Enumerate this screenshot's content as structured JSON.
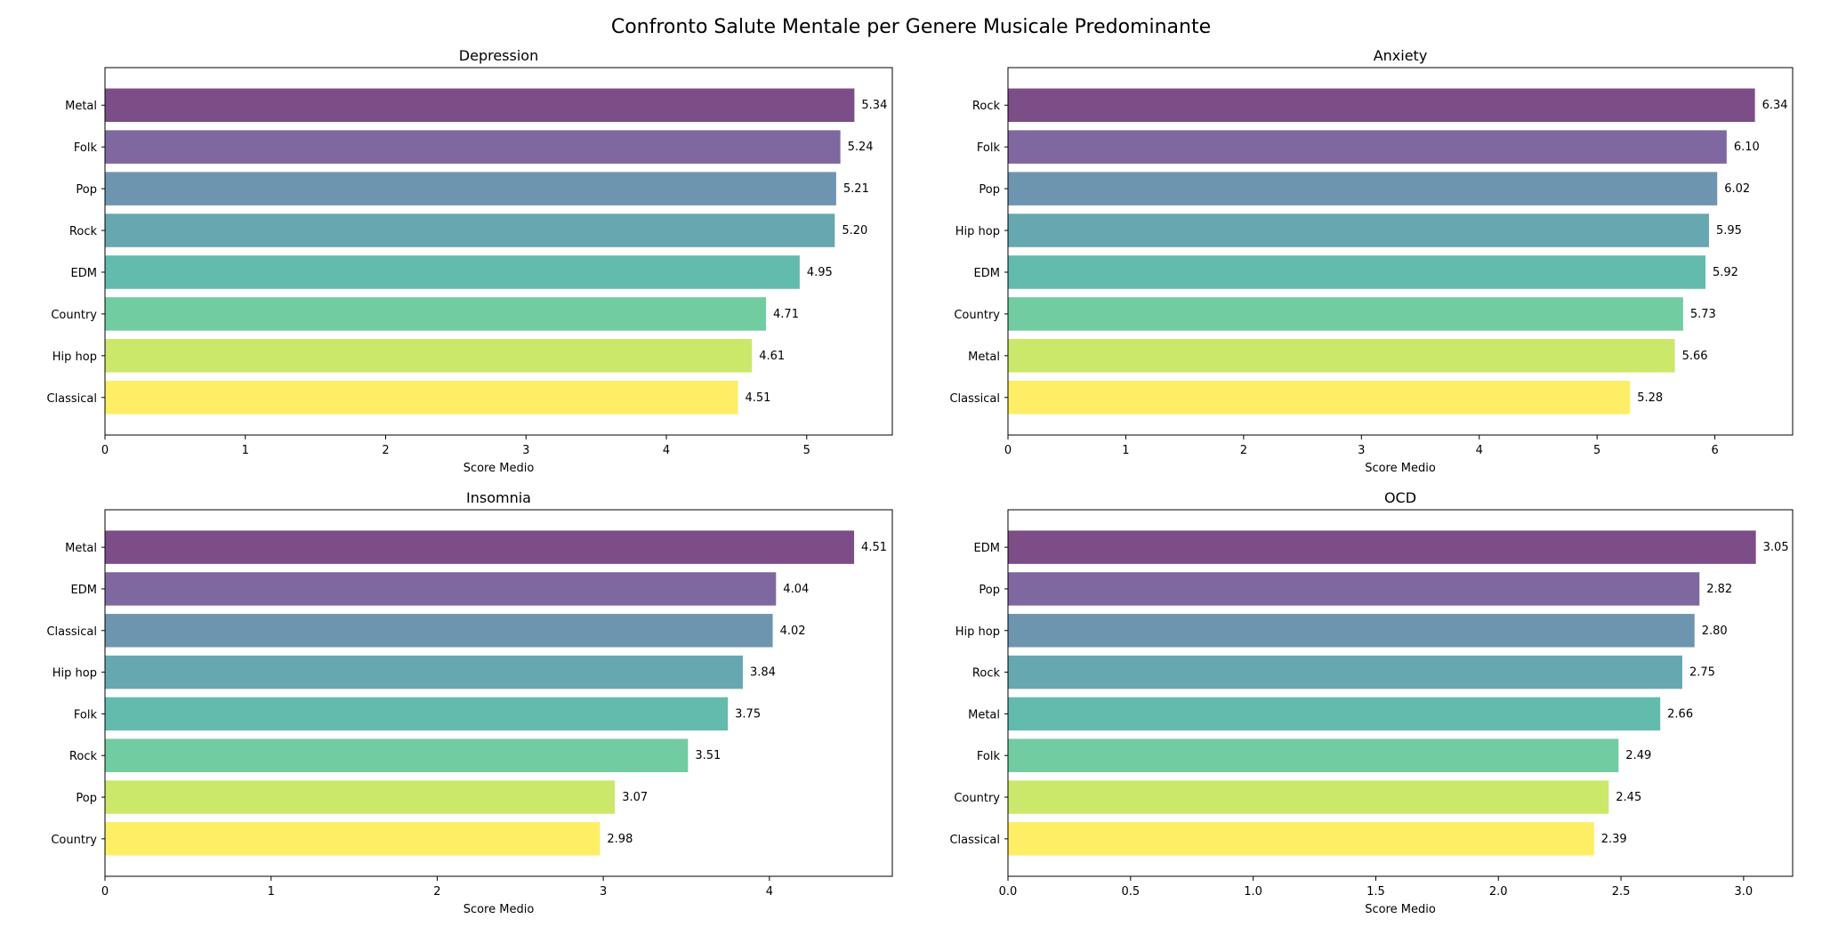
{
  "chart_data": {
    "title": "Confronto Salute Mentale per Genere Musicale Predominante",
    "palette": [
      "#fde725",
      "#b5de2b",
      "#6ece58",
      "#35b779",
      "#1f9e89",
      "#26828e",
      "#31688e",
      "#3e4989",
      "#482878",
      "#440154"
    ],
    "bar_alpha": 0.7,
    "panels": [
      {
        "type": "bar",
        "orientation": "horizontal",
        "title": "Depression",
        "categories": [
          "Metal",
          "Folk",
          "Pop",
          "Rock",
          "EDM",
          "Country",
          "Hip hop",
          "Classical"
        ],
        "values": [
          5.34,
          5.24,
          5.21,
          5.2,
          4.95,
          4.71,
          4.61,
          4.51
        ],
        "value_labels": [
          "5.34",
          "5.24",
          "5.21",
          "5.20",
          "4.95",
          "4.71",
          "4.61",
          "4.51"
        ],
        "xlabel": "Score Medio",
        "xlim": [
          0,
          5.61
        ],
        "xticks": [
          0,
          1,
          2,
          3,
          4,
          5
        ],
        "xtick_labels": [
          "0",
          "1",
          "2",
          "3",
          "4",
          "5"
        ]
      },
      {
        "type": "bar",
        "orientation": "horizontal",
        "title": "Anxiety",
        "categories": [
          "Rock",
          "Folk",
          "Pop",
          "Hip hop",
          "EDM",
          "Country",
          "Metal",
          "Classical"
        ],
        "values": [
          6.34,
          6.1,
          6.02,
          5.95,
          5.92,
          5.73,
          5.66,
          5.28
        ],
        "value_labels": [
          "6.34",
          "6.10",
          "6.02",
          "5.95",
          "5.92",
          "5.73",
          "5.66",
          "5.28"
        ],
        "xlabel": "Score Medio",
        "xlim": [
          0,
          6.66
        ],
        "xticks": [
          0,
          1,
          2,
          3,
          4,
          5,
          6
        ],
        "xtick_labels": [
          "0",
          "1",
          "2",
          "3",
          "4",
          "5",
          "6"
        ]
      },
      {
        "type": "bar",
        "orientation": "horizontal",
        "title": "Insomnia",
        "categories": [
          "Metal",
          "EDM",
          "Classical",
          "Hip hop",
          "Folk",
          "Rock",
          "Pop",
          "Country"
        ],
        "values": [
          4.51,
          4.04,
          4.02,
          3.84,
          3.75,
          3.51,
          3.07,
          2.98
        ],
        "value_labels": [
          "4.51",
          "4.04",
          "4.02",
          "3.84",
          "3.75",
          "3.51",
          "3.07",
          "2.98"
        ],
        "xlabel": "Score Medio",
        "xlim": [
          0,
          4.74
        ],
        "xticks": [
          0,
          1,
          2,
          3,
          4
        ],
        "xtick_labels": [
          "0",
          "1",
          "2",
          "3",
          "4"
        ]
      },
      {
        "type": "bar",
        "orientation": "horizontal",
        "title": "OCD",
        "categories": [
          "EDM",
          "Pop",
          "Hip hop",
          "Rock",
          "Metal",
          "Folk",
          "Country",
          "Classical"
        ],
        "values": [
          3.05,
          2.82,
          2.8,
          2.75,
          2.66,
          2.49,
          2.45,
          2.39
        ],
        "value_labels": [
          "3.05",
          "2.82",
          "2.80",
          "2.75",
          "2.66",
          "2.49",
          "2.45",
          "2.39"
        ],
        "xlabel": "Score Medio",
        "xlim": [
          0,
          3.2
        ],
        "xticks": [
          0,
          0.5,
          1,
          1.5,
          2,
          2.5,
          3
        ],
        "xtick_labels": [
          "0.0",
          "0.5",
          "1.0",
          "1.5",
          "2.0",
          "2.5",
          "3.0"
        ]
      }
    ]
  }
}
